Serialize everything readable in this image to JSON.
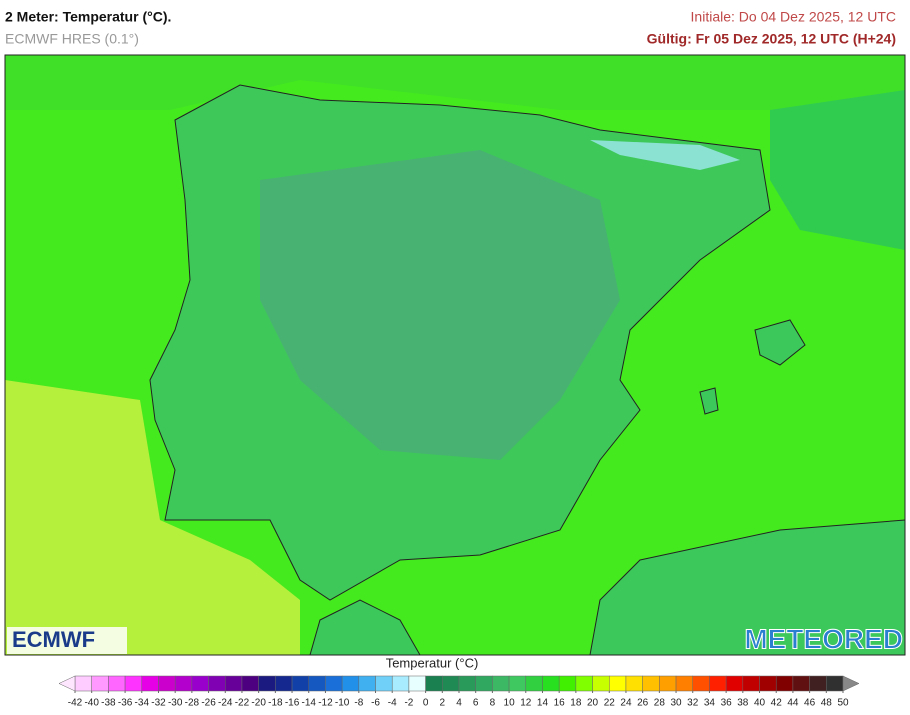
{
  "header": {
    "title": "2 Meter: Temperatur (°C).",
    "subtitle": "ECMWF HRES (0.1°)",
    "initial": "Initiale: Do 04 Dez 2025, 12 UTC",
    "valid": "Gültig: Fr 05 Dez 2025, 12 UTC (H+24)"
  },
  "logos": {
    "left": "ECMWF",
    "right": "METEORED"
  },
  "colorbar": {
    "label": "Temperatur (°C)",
    "ticks": [
      -42,
      -40,
      -38,
      -36,
      -34,
      -32,
      -30,
      -28,
      -26,
      -24,
      -22,
      -20,
      -18,
      -16,
      -14,
      -12,
      -10,
      -8,
      -6,
      -4,
      -2,
      0,
      2,
      4,
      6,
      8,
      10,
      12,
      14,
      16,
      18,
      20,
      22,
      24,
      26,
      28,
      30,
      32,
      34,
      36,
      38,
      40,
      42,
      44,
      46,
      48,
      50
    ],
    "colors": [
      "#ffccff",
      "#ff99ff",
      "#ff66ff",
      "#ff33ff",
      "#e600e6",
      "#cc00cc",
      "#b300cc",
      "#9900cc",
      "#8000b3",
      "#660099",
      "#4d0080",
      "#1a1a80",
      "#142890",
      "#1040a8",
      "#1458c0",
      "#1a70d8",
      "#2090e8",
      "#40b0f0",
      "#70d0f8",
      "#a8ecff",
      "#e8ffff",
      "#1a8050",
      "#208a55",
      "#2a9a5a",
      "#30a860",
      "#3cb865",
      "#40c860",
      "#30d040",
      "#28e020",
      "#40f000",
      "#80ff00",
      "#c8ff00",
      "#ffff00",
      "#ffe000",
      "#ffc000",
      "#ffa000",
      "#ff8000",
      "#ff5000",
      "#ff2000",
      "#e00000",
      "#c00000",
      "#a00000",
      "#800000",
      "#601010",
      "#402020",
      "#303030"
    ],
    "under_color": "#ffe6ff",
    "over_color": "#888888"
  }
}
